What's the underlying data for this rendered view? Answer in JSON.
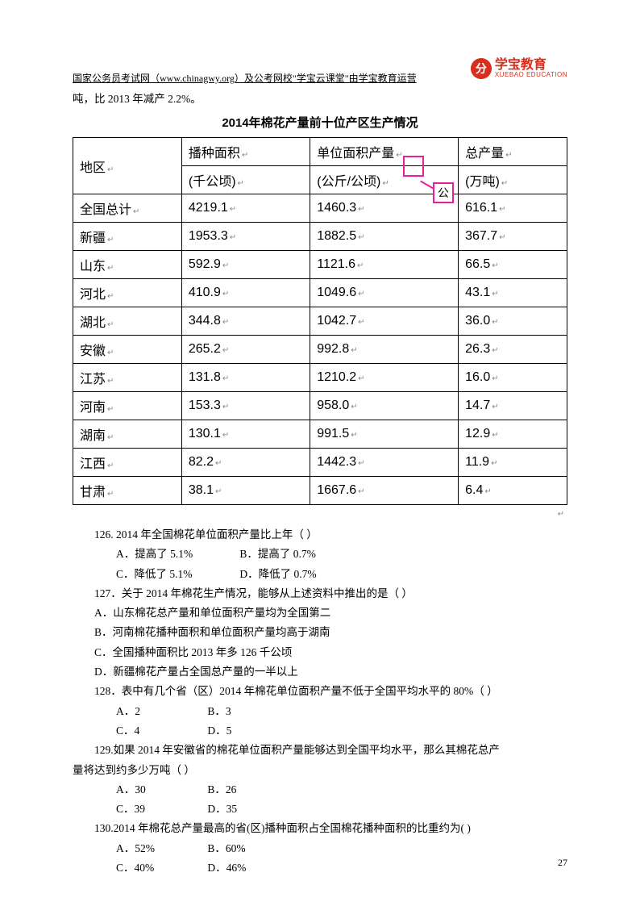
{
  "logo": {
    "cn": "学宝教育",
    "en": "XUEBAO EDUCATION",
    "glyph": "分"
  },
  "header": "国家公务员考试网（www.chinagwy.org）及公考网校\"学宝云课堂\"由学宝教育运营",
  "intro": "吨，比 2013 年减产 2.2%。",
  "table_title": "2014年棉花产量前十位产区生产情况",
  "table": {
    "headers_row1": [
      "地区",
      "播种面积",
      "单位面积产量",
      "总产量"
    ],
    "headers_row2": [
      "",
      "(千公顷)",
      "(公斤/公顷)",
      "(万吨)"
    ],
    "rows": [
      [
        "全国总计",
        "4219.1",
        "1460.3",
        "616.1"
      ],
      [
        "新疆",
        "1953.3",
        "1882.5",
        "367.7"
      ],
      [
        "山东",
        "592.9",
        "1121.6",
        "66.5"
      ],
      [
        "河北",
        "410.9",
        "1049.6",
        "43.1"
      ],
      [
        "湖北",
        "344.8",
        "1042.7",
        "36.0"
      ],
      [
        "安徽",
        "265.2",
        "992.8",
        "26.3"
      ],
      [
        "江苏",
        "131.8",
        "1210.2",
        "16.0"
      ],
      [
        "河南",
        "153.3",
        "958.0",
        "14.7"
      ],
      [
        "湖南",
        "130.1",
        "991.5",
        "12.9"
      ],
      [
        "江西",
        "82.2",
        "1442.3",
        "11.9"
      ],
      [
        "甘肃",
        "38.1",
        "1667.6",
        "6.4"
      ]
    ]
  },
  "highlight_char": "公",
  "questions": {
    "q126": {
      "stem": "126. 2014 年全国棉花单位面积产量比上年（  ）",
      "opts": [
        "A．提高了 5.1%",
        "B．提高了 0.7%",
        "C．降低了 5.1%",
        "D．降低了 0.7%"
      ]
    },
    "q127": {
      "stem": "127．关于 2014 年棉花生产情况，能够从上述资料中推出的是（  ）",
      "opts": [
        "A．山东棉花总产量和单位面积产量均为全国第二",
        "B．河南棉花播种面积和单位面积产量均高于湖南",
        "C．全国播种面积比 2013 年多 126 千公顷",
        "D．新疆棉花产量占全国总产量的一半以上"
      ]
    },
    "q128": {
      "stem": "128．表中有几个省（区）2014 年棉花单位面积产量不低于全国平均水平的 80%（  ）",
      "opts": [
        "A．2",
        "B．3",
        "C．4",
        "D．5"
      ]
    },
    "q129": {
      "stem_l1": "129.如果 2014 年安徽省的棉花单位面积产量能够达到全国平均水平，那么其棉花总产",
      "stem_l2": "量将达到约多少万吨（  ）",
      "opts": [
        "A．30",
        "B．26",
        "C．39",
        "D．35"
      ]
    },
    "q130": {
      "stem": "130.2014 年棉花总产量最高的省(区)播种面积占全国棉花播种面积的比重约为(   )",
      "opts": [
        "A．52%",
        "B．60%",
        "C．40%",
        "D．46%"
      ]
    }
  },
  "page_num": "27"
}
